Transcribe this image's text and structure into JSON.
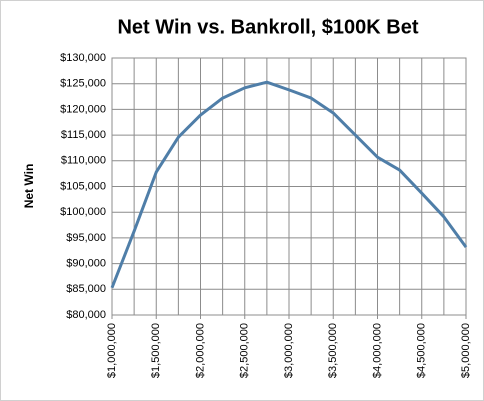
{
  "chart_data": {
    "type": "line",
    "title": "Net Win vs. Bankroll, $100K Bet",
    "y_label": "Net Win",
    "x": [
      1000000,
      1250000,
      1500000,
      1750000,
      2000000,
      2250000,
      2500000,
      2750000,
      3000000,
      3250000,
      3500000,
      3750000,
      4000000,
      4250000,
      4500000,
      4750000,
      5000000
    ],
    "series": [
      {
        "name": "Net Win",
        "color": "#4f7ea8",
        "values": [
          85300,
          96300,
          107800,
          114600,
          118900,
          122200,
          124200,
          125300,
          123800,
          122200,
          119300,
          115000,
          110700,
          108200,
          103700,
          99100,
          93200
        ]
      }
    ],
    "xlim": [
      1000000,
      5000000
    ],
    "xticks": [
      {
        "value": 1000000,
        "label": "$1,000,000"
      },
      {
        "value": 1500000,
        "label": "$1,500,000"
      },
      {
        "value": 2000000,
        "label": "$2,000,000"
      },
      {
        "value": 2500000,
        "label": "$2,500,000"
      },
      {
        "value": 3000000,
        "label": "$3,000,000"
      },
      {
        "value": 3500000,
        "label": "$3,500,000"
      },
      {
        "value": 4000000,
        "label": "$4,000,000"
      },
      {
        "value": 4500000,
        "label": "$4,500,000"
      },
      {
        "value": 5000000,
        "label": "$5,000,000"
      }
    ],
    "ylim": [
      80000,
      130000
    ],
    "yticks": [
      {
        "value": 80000,
        "label": "$80,000"
      },
      {
        "value": 85000,
        "label": "$85,000"
      },
      {
        "value": 90000,
        "label": "$90,000"
      },
      {
        "value": 95000,
        "label": "$95,000"
      },
      {
        "value": 100000,
        "label": "$100,000"
      },
      {
        "value": 105000,
        "label": "$105,000"
      },
      {
        "value": 110000,
        "label": "$110,000"
      },
      {
        "value": 115000,
        "label": "$115,000"
      },
      {
        "value": 120000,
        "label": "$120,000"
      },
      {
        "value": 125000,
        "label": "$125,000"
      },
      {
        "value": 130000,
        "label": "$130,000"
      }
    ],
    "grid": true
  }
}
